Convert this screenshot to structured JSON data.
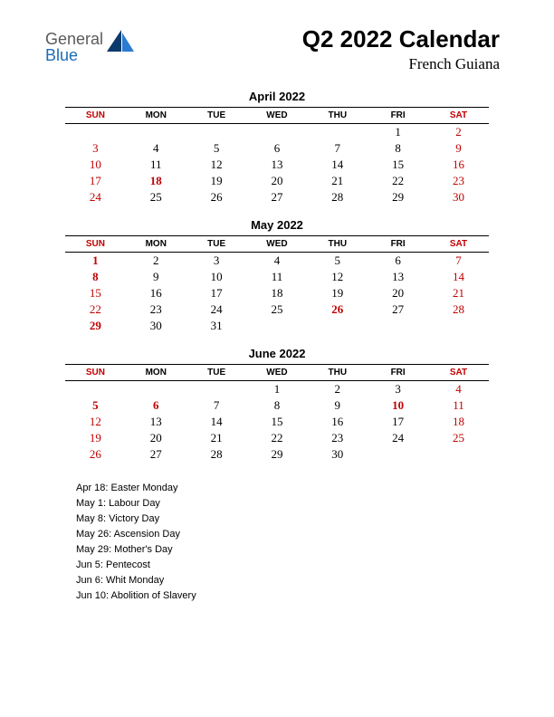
{
  "logo": {
    "general": "General",
    "blue": "Blue"
  },
  "title": "Q2 2022 Calendar",
  "subtitle": "French Guiana",
  "day_headers": [
    "SUN",
    "MON",
    "TUE",
    "WED",
    "THU",
    "FRI",
    "SAT"
  ],
  "colors": {
    "weekend": "#c00000",
    "text": "#000000",
    "logo_gray": "#5a5a5a",
    "logo_blue": "#1e6bb8",
    "logo_shape_dark": "#0b3a6b",
    "logo_shape_light": "#2a7bd1",
    "background": "#ffffff"
  },
  "months": [
    {
      "title": "April 2022",
      "weeks": [
        [
          "",
          "",
          "",
          "",
          "",
          "1",
          "2"
        ],
        [
          "3",
          "4",
          "5",
          "6",
          "7",
          "8",
          "9"
        ],
        [
          "10",
          "11",
          "12",
          "13",
          "14",
          "15",
          "16"
        ],
        [
          "17",
          "18",
          "19",
          "20",
          "21",
          "22",
          "23"
        ],
        [
          "24",
          "25",
          "26",
          "27",
          "28",
          "29",
          "30"
        ]
      ],
      "holidays_bold": [
        "18"
      ]
    },
    {
      "title": "May 2022",
      "weeks": [
        [
          "1",
          "2",
          "3",
          "4",
          "5",
          "6",
          "7"
        ],
        [
          "8",
          "9",
          "10",
          "11",
          "12",
          "13",
          "14"
        ],
        [
          "15",
          "16",
          "17",
          "18",
          "19",
          "20",
          "21"
        ],
        [
          "22",
          "23",
          "24",
          "25",
          "26",
          "27",
          "28"
        ],
        [
          "29",
          "30",
          "31",
          "",
          "",
          "",
          ""
        ]
      ],
      "holidays_bold": [
        "1",
        "8",
        "26",
        "29"
      ]
    },
    {
      "title": "June 2022",
      "weeks": [
        [
          "",
          "",
          "",
          "1",
          "2",
          "3",
          "4"
        ],
        [
          "5",
          "6",
          "7",
          "8",
          "9",
          "10",
          "11"
        ],
        [
          "12",
          "13",
          "14",
          "15",
          "16",
          "17",
          "18"
        ],
        [
          "19",
          "20",
          "21",
          "22",
          "23",
          "24",
          "25"
        ],
        [
          "26",
          "27",
          "28",
          "29",
          "30",
          "",
          ""
        ]
      ],
      "holidays_bold": [
        "5",
        "6",
        "10"
      ]
    }
  ],
  "holiday_list": [
    "Apr 18: Easter Monday",
    "May 1: Labour Day",
    "May 8: Victory Day",
    "May 26: Ascension Day",
    "May 29: Mother's Day",
    "Jun 5: Pentecost",
    "Jun 6: Whit Monday",
    "Jun 10: Abolition of Slavery"
  ]
}
